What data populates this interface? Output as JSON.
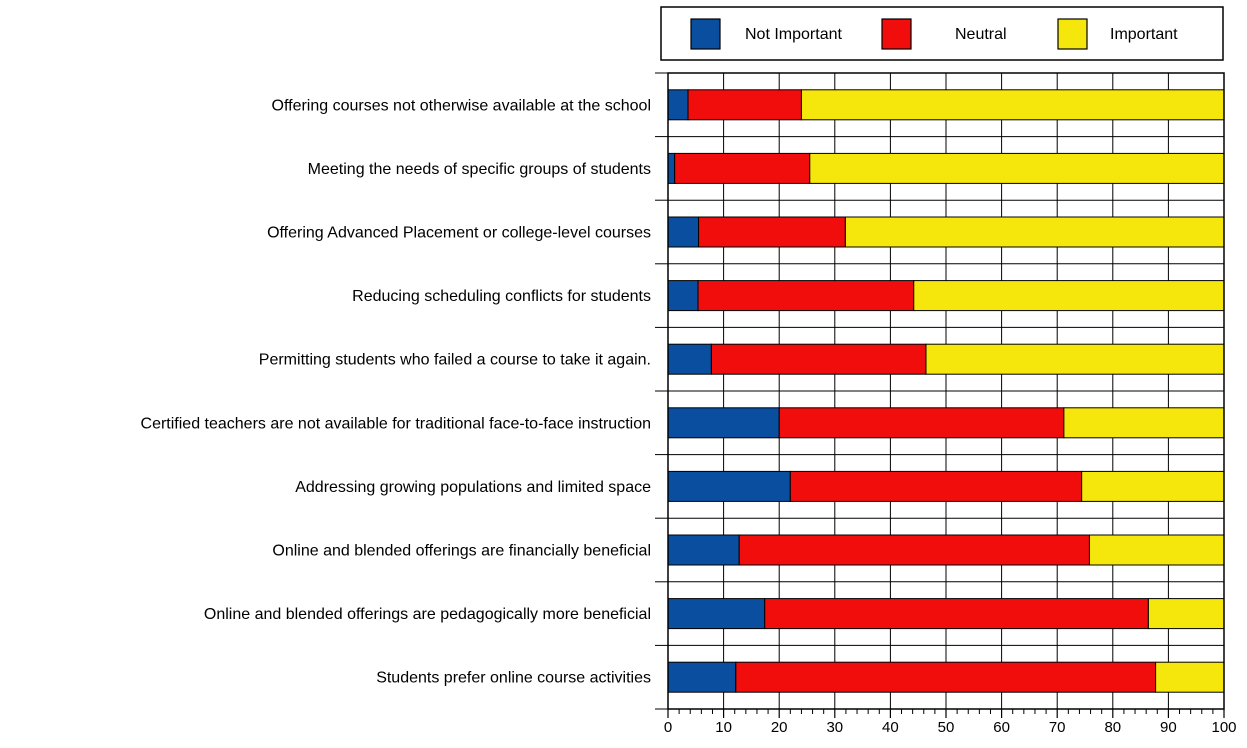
{
  "chart_data": {
    "type": "bar",
    "orientation": "horizontal",
    "stacked": true,
    "title": "",
    "xlabel": "",
    "ylabel": "",
    "xlim": [
      0,
      100
    ],
    "xticks": [
      0,
      10,
      20,
      30,
      40,
      50,
      60,
      70,
      80,
      90,
      100
    ],
    "grid": true,
    "legend_position": "top-right",
    "categories": [
      "Offering courses not otherwise available at the school",
      "Meeting the needs of specific groups of students",
      "Offering Advanced Placement or college-level courses",
      "Reducing scheduling conflicts for students",
      "Permitting students who failed a course to take it again.",
      "Certified teachers are not available for traditional face-to-face instruction",
      "Addressing growing populations and limited space",
      "Online and blended offerings are financially beneficial",
      "Online and blended offerings are pedagogically more beneficial",
      "Students prefer online course activities"
    ],
    "series": [
      {
        "name": "Not Important",
        "color": "#0a4ea0",
        "values": [
          3.6,
          1.2,
          5.5,
          5.4,
          7.8,
          20.0,
          22.0,
          12.8,
          17.4,
          12.2
        ]
      },
      {
        "name": "Neutral",
        "color": "#f20d0d",
        "values": [
          20.4,
          24.3,
          26.4,
          38.8,
          38.6,
          51.2,
          52.4,
          63.0,
          69.0,
          75.5
        ]
      },
      {
        "name": "Important",
        "color": "#f5e60b",
        "values": [
          76.0,
          74.5,
          68.1,
          55.8,
          53.6,
          28.8,
          25.6,
          24.2,
          13.6,
          12.3
        ]
      }
    ]
  }
}
